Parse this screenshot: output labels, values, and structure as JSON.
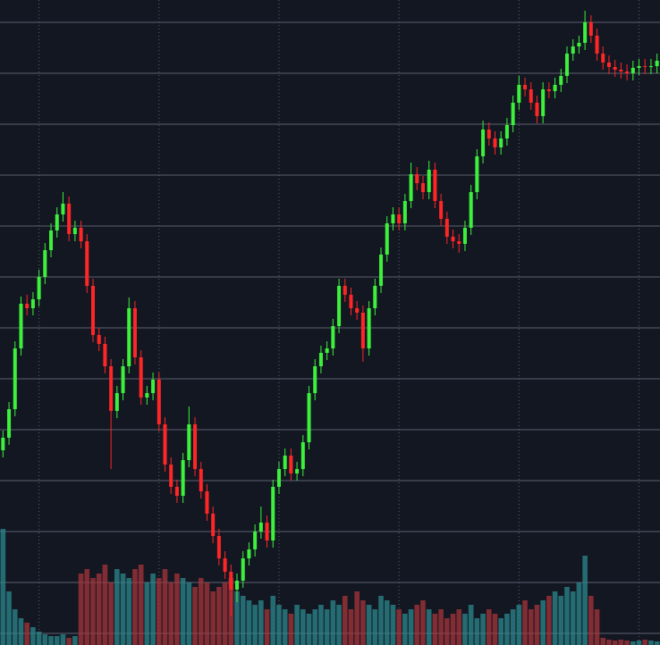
{
  "chart_data": {
    "type": "candlestick",
    "background": "#131722",
    "grid": true,
    "grid_color": "#5d6170",
    "up_color": "#3cf03c",
    "down_color": "#ff2626",
    "xlim": [
      -0.5,
      109.5
    ],
    "xticks": [
      6,
      26,
      46,
      66,
      86,
      106
    ],
    "ylim": [
      -13,
      709
    ],
    "yticks": [
      0,
      57,
      114,
      171,
      228,
      285,
      342,
      399,
      456,
      513,
      570,
      627,
      684
    ],
    "open": [
      205,
      219,
      251,
      319,
      369,
      364,
      374,
      399,
      429,
      451,
      469,
      481,
      447,
      454,
      439,
      389,
      334,
      324,
      299,
      249,
      269,
      299,
      364,
      309,
      264,
      269,
      284,
      234,
      189,
      164,
      154,
      194,
      234,
      184,
      159,
      134,
      109,
      84,
      69,
      49,
      59,
      84,
      94,
      114,
      124,
      104,
      164,
      184,
      199,
      179,
      184,
      214,
      269,
      299,
      314,
      319,
      344,
      389,
      379,
      364,
      359,
      319,
      364,
      389,
      424,
      459,
      469,
      459,
      484,
      514,
      504,
      494,
      519,
      484,
      464,
      444,
      439,
      436,
      454,
      494,
      534,
      564,
      554,
      544,
      554,
      569,
      594,
      614,
      609,
      594,
      579,
      609,
      607,
      614,
      624,
      649,
      657,
      661,
      684,
      669,
      649,
      639,
      634,
      631,
      629,
      627,
      633,
      635,
      634,
      635
    ],
    "high": [
      227,
      259,
      327,
      377,
      379,
      382,
      407,
      437,
      459,
      477,
      494,
      489,
      462,
      462,
      447,
      397,
      342,
      332,
      307,
      277,
      307,
      376,
      372,
      317,
      277,
      292,
      292,
      242,
      197,
      172,
      202,
      254,
      242,
      192,
      167,
      142,
      117,
      92,
      77,
      67,
      92,
      102,
      122,
      142,
      132,
      172,
      192,
      207,
      207,
      192,
      222,
      277,
      307,
      322,
      327,
      352,
      397,
      397,
      387,
      372,
      367,
      372,
      397,
      432,
      467,
      477,
      477,
      492,
      527,
      522,
      512,
      529,
      527,
      492,
      472,
      452,
      447,
      462,
      502,
      542,
      574,
      572,
      562,
      562,
      577,
      602,
      624,
      622,
      617,
      602,
      617,
      617,
      622,
      632,
      657,
      665,
      669,
      697,
      692,
      677,
      657,
      647,
      642,
      639,
      637,
      641,
      643,
      643,
      643,
      649
    ],
    "low": [
      197,
      211,
      243,
      311,
      356,
      356,
      366,
      391,
      421,
      443,
      461,
      439,
      439,
      431,
      381,
      326,
      316,
      291,
      184,
      241,
      261,
      291,
      301,
      256,
      256,
      261,
      226,
      181,
      156,
      146,
      146,
      186,
      176,
      151,
      126,
      101,
      76,
      61,
      19,
      35,
      51,
      76,
      86,
      106,
      96,
      96,
      156,
      176,
      171,
      171,
      176,
      206,
      261,
      291,
      306,
      311,
      336,
      371,
      356,
      351,
      304,
      311,
      356,
      381,
      416,
      451,
      451,
      451,
      476,
      496,
      486,
      486,
      476,
      456,
      436,
      431,
      426,
      428,
      446,
      486,
      526,
      546,
      536,
      536,
      546,
      561,
      586,
      601,
      586,
      571,
      571,
      599,
      599,
      606,
      616,
      641,
      649,
      653,
      661,
      641,
      631,
      626,
      623,
      621,
      619,
      619,
      625,
      626,
      626,
      627
    ],
    "close": [
      219,
      251,
      319,
      369,
      364,
      374,
      399,
      429,
      451,
      469,
      481,
      447,
      454,
      439,
      389,
      334,
      324,
      299,
      249,
      269,
      299,
      364,
      309,
      264,
      269,
      284,
      234,
      189,
      164,
      154,
      194,
      234,
      184,
      159,
      134,
      109,
      84,
      69,
      49,
      59,
      84,
      94,
      114,
      124,
      104,
      164,
      184,
      199,
      179,
      184,
      214,
      269,
      299,
      314,
      319,
      344,
      389,
      379,
      364,
      359,
      319,
      364,
      389,
      424,
      459,
      469,
      459,
      484,
      514,
      504,
      494,
      519,
      484,
      464,
      444,
      439,
      436,
      454,
      494,
      534,
      564,
      554,
      544,
      554,
      569,
      594,
      614,
      609,
      594,
      579,
      609,
      607,
      614,
      624,
      649,
      657,
      661,
      684,
      669,
      649,
      639,
      634,
      631,
      629,
      627,
      633,
      635,
      634,
      635,
      641
    ],
    "volume": {
      "ylim": [
        0,
        722
      ],
      "up_color": "#2b8a8e",
      "down_color": "#a8343a",
      "values": [
        130,
        60,
        40,
        30,
        25,
        20,
        15,
        12,
        10,
        10,
        12,
        8,
        10,
        80,
        85,
        75,
        80,
        90,
        70,
        85,
        80,
        75,
        85,
        90,
        70,
        80,
        75,
        85,
        70,
        80,
        75,
        70,
        65,
        75,
        70,
        60,
        65,
        70,
        75,
        60,
        55,
        50,
        45,
        50,
        40,
        55,
        45,
        40,
        35,
        45,
        40,
        35,
        40,
        45,
        40,
        50,
        45,
        55,
        40,
        60,
        50,
        45,
        40,
        55,
        50,
        45,
        40,
        35,
        40,
        45,
        50,
        40,
        35,
        40,
        30,
        35,
        40,
        35,
        45,
        30,
        35,
        40,
        35,
        30,
        35,
        40,
        45,
        50,
        40,
        45,
        50,
        55,
        60,
        55,
        65,
        60,
        70,
        100,
        55,
        40,
        8,
        6,
        5,
        6,
        5,
        4,
        5,
        6,
        5,
        4
      ]
    }
  }
}
